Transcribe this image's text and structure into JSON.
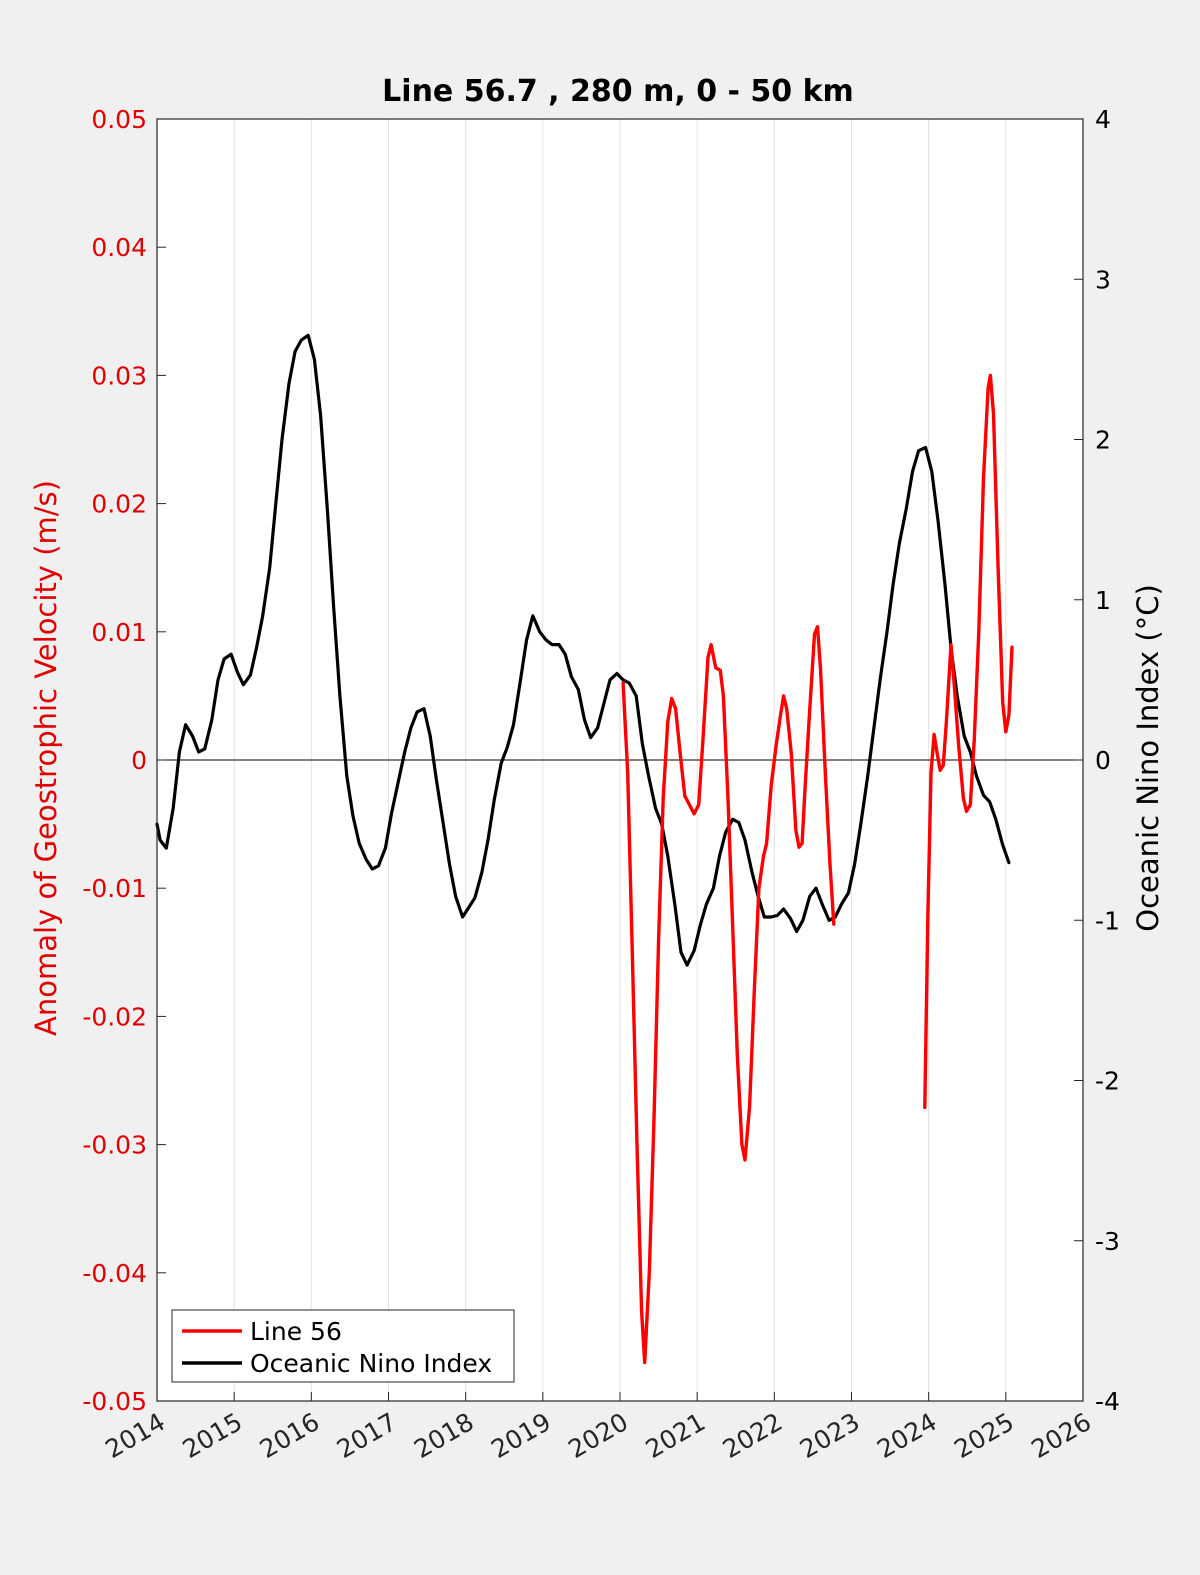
{
  "chart_data": {
    "type": "line",
    "title": "Line 56.7 , 280 m, 0 - 50 km",
    "xlabel": "",
    "ylabel_left": "Anomaly of Geostrophic Velocity (m/s)",
    "ylabel_right": "Oceanic Nino Index (°C)",
    "xlim": [
      2014,
      2026
    ],
    "ylim_left": [
      -0.05,
      0.05
    ],
    "ylim_right": [
      -4,
      4
    ],
    "x_ticks": [
      "2014",
      "2015",
      "2016",
      "2017",
      "2018",
      "2019",
      "2020",
      "2021",
      "2022",
      "2023",
      "2024",
      "2025",
      "2026"
    ],
    "y_left_ticks": [
      "0.05",
      "0.04",
      "0.03",
      "0.02",
      "0.01",
      "0",
      "-0.01",
      "-0.02",
      "-0.03",
      "-0.04",
      "-0.05"
    ],
    "y_right_ticks": [
      "4",
      "3",
      "2",
      "1",
      "0",
      "-1",
      "-2",
      "-3",
      "-4"
    ],
    "grid": "vertical",
    "legend_position": "bottom-left",
    "series": [
      {
        "name": "Line 56",
        "axis": "left",
        "color": "#ff0000",
        "segments": [
          [
            [
              2020.04,
              0.006
            ],
            [
              2020.1,
              -0.001
            ],
            [
              2020.16,
              -0.015
            ],
            [
              2020.22,
              -0.03
            ],
            [
              2020.28,
              -0.043
            ],
            [
              2020.32,
              -0.047
            ],
            [
              2020.38,
              -0.04
            ],
            [
              2020.44,
              -0.028
            ],
            [
              2020.5,
              -0.014
            ],
            [
              2020.56,
              -0.003
            ],
            [
              2020.62,
              0.003
            ],
            [
              2020.67,
              0.0048
            ],
            [
              2020.72,
              0.004
            ],
            [
              2020.78,
              0.0005
            ],
            [
              2020.84,
              -0.0028
            ],
            [
              2020.9,
              -0.0035
            ],
            [
              2020.96,
              -0.0042
            ],
            [
              2021.02,
              -0.0035
            ],
            [
              2021.08,
              0.002
            ],
            [
              2021.14,
              0.008
            ],
            [
              2021.18,
              0.009
            ],
            [
              2021.24,
              0.0072
            ],
            [
              2021.3,
              0.007
            ],
            [
              2021.34,
              0.005
            ],
            [
              2021.4,
              -0.003
            ],
            [
              2021.46,
              -0.013
            ],
            [
              2021.52,
              -0.023
            ],
            [
              2021.58,
              -0.03
            ],
            [
              2021.62,
              -0.0312
            ],
            [
              2021.68,
              -0.027
            ],
            [
              2021.74,
              -0.018
            ],
            [
              2021.8,
              -0.01
            ],
            [
              2021.86,
              -0.0075
            ],
            [
              2021.9,
              -0.0065
            ],
            [
              2021.96,
              -0.002
            ],
            [
              2022.02,
              0.001
            ],
            [
              2022.08,
              0.0035
            ],
            [
              2022.12,
              0.005
            ],
            [
              2022.16,
              0.004
            ],
            [
              2022.22,
              0.0005
            ],
            [
              2022.28,
              -0.0055
            ],
            [
              2022.32,
              -0.0068
            ],
            [
              2022.36,
              -0.0065
            ],
            [
              2022.4,
              -0.002
            ],
            [
              2022.46,
              0.004
            ],
            [
              2022.52,
              0.0098
            ],
            [
              2022.56,
              0.0104
            ],
            [
              2022.6,
              0.007
            ],
            [
              2022.66,
              -0.001
            ],
            [
              2022.72,
              -0.008
            ],
            [
              2022.77,
              -0.0128
            ]
          ],
          [
            [
              2023.95,
              -0.0271
            ],
            [
              2023.99,
              -0.012
            ],
            [
              2024.03,
              -0.001
            ],
            [
              2024.07,
              0.002
            ],
            [
              2024.11,
              0.0005
            ],
            [
              2024.15,
              -0.0008
            ],
            [
              2024.19,
              -0.0004
            ],
            [
              2024.23,
              0.003
            ],
            [
              2024.29,
              0.009
            ],
            [
              2024.33,
              0.006
            ],
            [
              2024.39,
              0.001
            ],
            [
              2024.45,
              -0.003
            ],
            [
              2024.49,
              -0.004
            ],
            [
              2024.54,
              -0.0035
            ],
            [
              2024.59,
              0.0015
            ],
            [
              2024.65,
              0.01
            ],
            [
              2024.71,
              0.022
            ],
            [
              2024.77,
              0.029
            ],
            [
              2024.8,
              0.03
            ],
            [
              2024.84,
              0.027
            ],
            [
              2024.9,
              0.015
            ],
            [
              2024.96,
              0.0045
            ],
            [
              2025.0,
              0.0022
            ],
            [
              2025.04,
              0.0035
            ],
            [
              2025.08,
              0.0088
            ]
          ]
        ]
      },
      {
        "name": "Oceanic Nino Index",
        "axis": "right",
        "color": "#000000",
        "points": [
          [
            2014.0,
            -0.4
          ],
          [
            2014.04,
            -0.5
          ],
          [
            2014.12,
            -0.55
          ],
          [
            2014.21,
            -0.3
          ],
          [
            2014.29,
            0.05
          ],
          [
            2014.37,
            0.22
          ],
          [
            2014.46,
            0.15
          ],
          [
            2014.54,
            0.05
          ],
          [
            2014.62,
            0.07
          ],
          [
            2014.71,
            0.25
          ],
          [
            2014.79,
            0.5
          ],
          [
            2014.87,
            0.63
          ],
          [
            2014.96,
            0.66
          ],
          [
            2015.04,
            0.55
          ],
          [
            2015.12,
            0.47
          ],
          [
            2015.21,
            0.53
          ],
          [
            2015.29,
            0.7
          ],
          [
            2015.37,
            0.9
          ],
          [
            2015.46,
            1.2
          ],
          [
            2015.54,
            1.6
          ],
          [
            2015.62,
            2.0
          ],
          [
            2015.71,
            2.35
          ],
          [
            2015.79,
            2.55
          ],
          [
            2015.87,
            2.62
          ],
          [
            2015.96,
            2.65
          ],
          [
            2016.04,
            2.5
          ],
          [
            2016.12,
            2.15
          ],
          [
            2016.21,
            1.55
          ],
          [
            2016.29,
            0.95
          ],
          [
            2016.37,
            0.4
          ],
          [
            2016.46,
            -0.1
          ],
          [
            2016.54,
            -0.35
          ],
          [
            2016.62,
            -0.52
          ],
          [
            2016.71,
            -0.62
          ],
          [
            2016.79,
            -0.68
          ],
          [
            2016.87,
            -0.66
          ],
          [
            2016.96,
            -0.55
          ],
          [
            2017.04,
            -0.33
          ],
          [
            2017.12,
            -0.15
          ],
          [
            2017.21,
            0.05
          ],
          [
            2017.29,
            0.2
          ],
          [
            2017.37,
            0.3
          ],
          [
            2017.46,
            0.32
          ],
          [
            2017.54,
            0.15
          ],
          [
            2017.62,
            -0.12
          ],
          [
            2017.71,
            -0.4
          ],
          [
            2017.79,
            -0.65
          ],
          [
            2017.87,
            -0.85
          ],
          [
            2017.96,
            -0.98
          ],
          [
            2018.04,
            -0.92
          ],
          [
            2018.12,
            -0.86
          ],
          [
            2018.21,
            -0.7
          ],
          [
            2018.29,
            -0.5
          ],
          [
            2018.37,
            -0.25
          ],
          [
            2018.46,
            -0.02
          ],
          [
            2018.54,
            0.08
          ],
          [
            2018.62,
            0.22
          ],
          [
            2018.71,
            0.5
          ],
          [
            2018.79,
            0.75
          ],
          [
            2018.87,
            0.9
          ],
          [
            2018.96,
            0.8
          ],
          [
            2019.04,
            0.75
          ],
          [
            2019.12,
            0.72
          ],
          [
            2019.21,
            0.72
          ],
          [
            2019.29,
            0.66
          ],
          [
            2019.37,
            0.52
          ],
          [
            2019.46,
            0.44
          ],
          [
            2019.54,
            0.25
          ],
          [
            2019.62,
            0.14
          ],
          [
            2019.71,
            0.2
          ],
          [
            2019.79,
            0.35
          ],
          [
            2019.87,
            0.5
          ],
          [
            2019.96,
            0.54
          ],
          [
            2020.04,
            0.5
          ],
          [
            2020.12,
            0.48
          ],
          [
            2020.21,
            0.4
          ],
          [
            2020.29,
            0.1
          ],
          [
            2020.37,
            -0.1
          ],
          [
            2020.46,
            -0.3
          ],
          [
            2020.54,
            -0.4
          ],
          [
            2020.62,
            -0.6
          ],
          [
            2020.71,
            -0.9
          ],
          [
            2020.79,
            -1.2
          ],
          [
            2020.87,
            -1.28
          ],
          [
            2020.96,
            -1.19
          ],
          [
            2021.04,
            -1.03
          ],
          [
            2021.12,
            -0.9
          ],
          [
            2021.21,
            -0.8
          ],
          [
            2021.29,
            -0.6
          ],
          [
            2021.37,
            -0.45
          ],
          [
            2021.46,
            -0.37
          ],
          [
            2021.54,
            -0.39
          ],
          [
            2021.62,
            -0.5
          ],
          [
            2021.71,
            -0.7
          ],
          [
            2021.79,
            -0.85
          ],
          [
            2021.87,
            -0.98
          ],
          [
            2021.96,
            -0.98
          ],
          [
            2022.04,
            -0.97
          ],
          [
            2022.12,
            -0.93
          ],
          [
            2022.21,
            -0.99
          ],
          [
            2022.29,
            -1.07
          ],
          [
            2022.37,
            -1.0
          ],
          [
            2022.46,
            -0.85
          ],
          [
            2022.54,
            -0.8
          ],
          [
            2022.62,
            -0.9
          ],
          [
            2022.71,
            -1.0
          ],
          [
            2022.79,
            -0.98
          ],
          [
            2022.87,
            -0.9
          ],
          [
            2022.96,
            -0.83
          ],
          [
            2023.04,
            -0.65
          ],
          [
            2023.12,
            -0.4
          ],
          [
            2023.21,
            -0.1
          ],
          [
            2023.29,
            0.2
          ],
          [
            2023.37,
            0.5
          ],
          [
            2023.46,
            0.8
          ],
          [
            2023.54,
            1.1
          ],
          [
            2023.62,
            1.35
          ],
          [
            2023.71,
            1.57
          ],
          [
            2023.79,
            1.8
          ],
          [
            2023.87,
            1.93
          ],
          [
            2023.96,
            1.95
          ],
          [
            2024.04,
            1.8
          ],
          [
            2024.12,
            1.5
          ],
          [
            2024.21,
            1.1
          ],
          [
            2024.29,
            0.7
          ],
          [
            2024.37,
            0.4
          ],
          [
            2024.46,
            0.15
          ],
          [
            2024.54,
            0.05
          ],
          [
            2024.62,
            -0.1
          ],
          [
            2024.71,
            -0.22
          ],
          [
            2024.79,
            -0.26
          ],
          [
            2024.87,
            -0.37
          ],
          [
            2024.96,
            -0.53
          ],
          [
            2025.04,
            -0.64
          ]
        ]
      }
    ]
  }
}
